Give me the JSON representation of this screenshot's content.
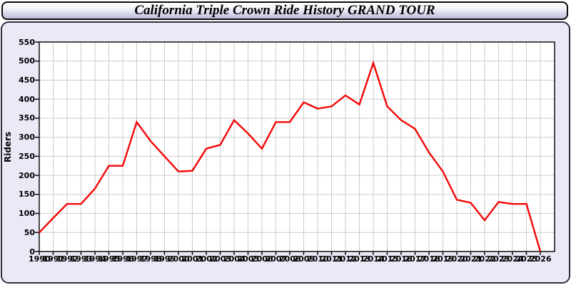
{
  "chart_data": {
    "type": "line",
    "title": "California Triple Crown Ride History GRAND TOUR",
    "xlabel": "",
    "ylabel": "Riders",
    "ylim": [
      0,
      550
    ],
    "ytick_step": 50,
    "grid": true,
    "legend_position": "none",
    "x": [
      1990,
      1991,
      1992,
      1993,
      1994,
      1995,
      1996,
      1997,
      1998,
      1999,
      2000,
      2001,
      2002,
      2003,
      2004,
      2005,
      2006,
      2007,
      2008,
      2009,
      2010,
      2011,
      2012,
      2013,
      2014,
      2015,
      2016,
      2017,
      2018,
      2019,
      2020,
      2021,
      2022,
      2023,
      2024,
      2025,
      2026
    ],
    "series": [
      {
        "name": "Riders",
        "values": [
          50,
          88,
          125,
          125,
          165,
          225,
          225,
          340,
          290,
          250,
          210,
          212,
          270,
          280,
          345,
          310,
          270,
          340,
          340,
          392,
          375,
          381,
          410,
          386,
          495,
          381,
          345,
          322,
          260,
          210,
          136,
          128,
          82,
          130,
          125,
          125,
          0
        ]
      }
    ]
  },
  "colors": {
    "line": "#f20707",
    "panel_bg": "#eaeaf7",
    "plot_bg": "#ffffff",
    "grid": "#cccccc",
    "frame": "#000000",
    "title_text": "#000000"
  }
}
